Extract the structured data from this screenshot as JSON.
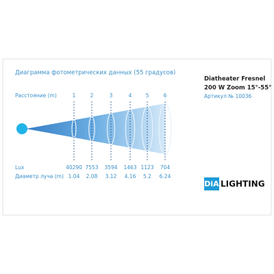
{
  "header": {
    "title": "Диаграмма фотометрических данных (55 градусов)",
    "product": [
      "Diatheater Fresnel",
      "200 W Zoom 15°-55°"
    ],
    "article": "Артикул № 10036"
  },
  "rows": {
    "distance": {
      "label": "Расстояние (m)",
      "values": [
        "1",
        "2",
        "3",
        "4",
        "5",
        "6"
      ]
    },
    "lux": {
      "label": "Lux",
      "values": [
        "40290",
        "7553",
        "3594",
        "1463",
        "1123",
        "704"
      ]
    },
    "diameter": {
      "label": "Диаметр луча (m)",
      "values": [
        "1.04",
        "2.08",
        "3.12",
        "4.16",
        "5.2",
        "6.24"
      ]
    }
  },
  "logo": {
    "mark": "DiA",
    "text": "LIGHTING"
  }
}
